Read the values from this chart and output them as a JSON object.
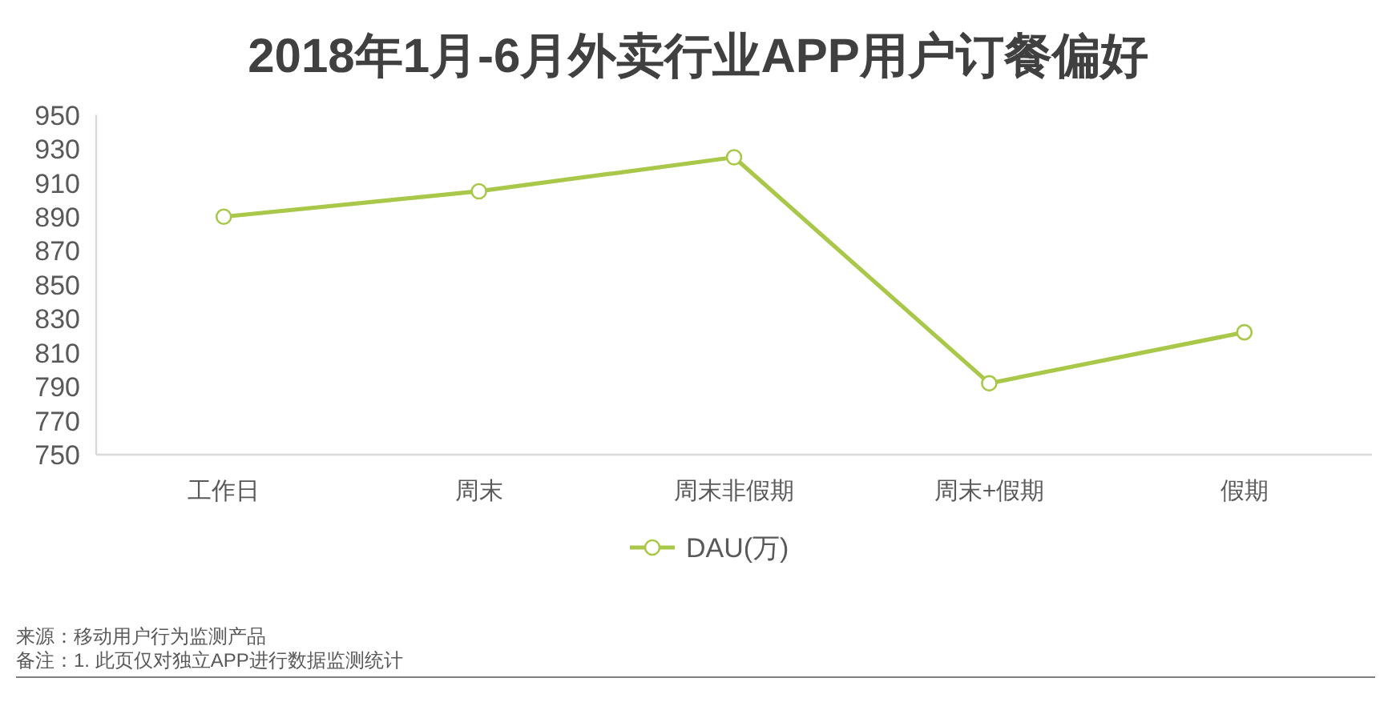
{
  "chart_data": {
    "type": "line",
    "title": "2018年1月-6月外卖行业APP用户订餐偏好",
    "categories": [
      "工作日",
      "周末",
      "周末非假期",
      "周末+假期",
      "假期"
    ],
    "series": [
      {
        "name": "DAU(万)",
        "color": "#a9c84a",
        "values": [
          890,
          905,
          925,
          792,
          822
        ]
      }
    ],
    "ylim": [
      750,
      950
    ],
    "yticks": [
      750,
      770,
      790,
      810,
      830,
      850,
      870,
      890,
      910,
      930,
      950
    ],
    "grid": false,
    "legend": "bottom",
    "marker": "circle",
    "line_style": "solid",
    "annotations": [
      "来源：移动用户行为监测产品",
      "备注：1. 此页仅对独立APP进行数据监测统计"
    ]
  }
}
